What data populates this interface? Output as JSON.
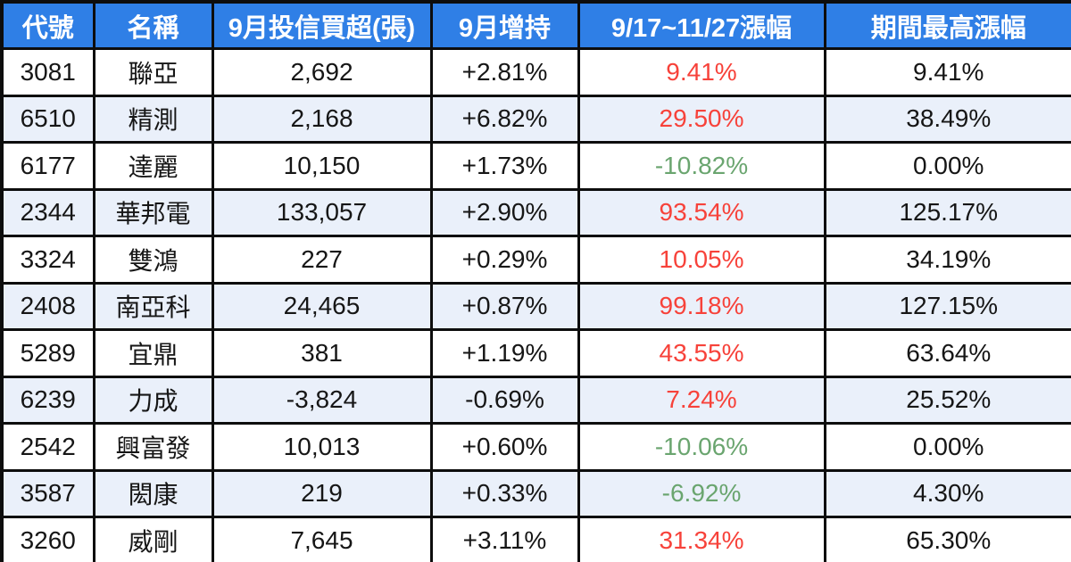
{
  "chart_data": {
    "type": "table",
    "columns": [
      "代號",
      "名稱",
      "9月投信買超(張)",
      "9月增持",
      "9/17~11/27漲幅",
      "期間最高漲幅"
    ],
    "rows": [
      {
        "code": "3081",
        "name": "聯亞",
        "net_buy": "2,692",
        "sep_change": "+2.81%",
        "period_change": "9.41%",
        "period_change_color": "red",
        "max_change": "9.41%"
      },
      {
        "code": "6510",
        "name": "精測",
        "net_buy": "2,168",
        "sep_change": "+6.82%",
        "period_change": "29.50%",
        "period_change_color": "red",
        "max_change": "38.49%"
      },
      {
        "code": "6177",
        "name": "達麗",
        "net_buy": "10,150",
        "sep_change": "+1.73%",
        "period_change": "-10.82%",
        "period_change_color": "green",
        "max_change": "0.00%"
      },
      {
        "code": "2344",
        "name": "華邦電",
        "net_buy": "133,057",
        "sep_change": "+2.90%",
        "period_change": "93.54%",
        "period_change_color": "red",
        "max_change": "125.17%"
      },
      {
        "code": "3324",
        "name": "雙鴻",
        "net_buy": "227",
        "sep_change": "+0.29%",
        "period_change": "10.05%",
        "period_change_color": "red",
        "max_change": "34.19%"
      },
      {
        "code": "2408",
        "name": "南亞科",
        "net_buy": "24,465",
        "sep_change": "+0.87%",
        "period_change": "99.18%",
        "period_change_color": "red",
        "max_change": "127.15%"
      },
      {
        "code": "5289",
        "name": "宜鼎",
        "net_buy": "381",
        "sep_change": "+1.19%",
        "period_change": "43.55%",
        "period_change_color": "red",
        "max_change": "63.64%"
      },
      {
        "code": "6239",
        "name": "力成",
        "net_buy": "-3,824",
        "sep_change": "-0.69%",
        "period_change": "7.24%",
        "period_change_color": "red",
        "max_change": "25.52%"
      },
      {
        "code": "2542",
        "name": "興富發",
        "net_buy": "10,013",
        "sep_change": "+0.60%",
        "period_change": "-10.06%",
        "period_change_color": "green",
        "max_change": "0.00%"
      },
      {
        "code": "3587",
        "name": "閎康",
        "net_buy": "219",
        "sep_change": "+0.33%",
        "period_change": "-6.92%",
        "period_change_color": "green",
        "max_change": "4.30%"
      },
      {
        "code": "3260",
        "name": "威剛",
        "net_buy": "7,645",
        "sep_change": "+3.11%",
        "period_change": "31.34%",
        "period_change_color": "red",
        "max_change": "65.30%"
      }
    ]
  },
  "colors": {
    "header_bg": "#2f7fe6",
    "header_text": "#ffffff",
    "row_bg": "#ffffff",
    "row_alt_bg": "#eaf0fa",
    "positive_text": "#f7423a",
    "negative_text": "#6aa56f",
    "body_text": "#161616",
    "border": "#0d0d0d"
  }
}
